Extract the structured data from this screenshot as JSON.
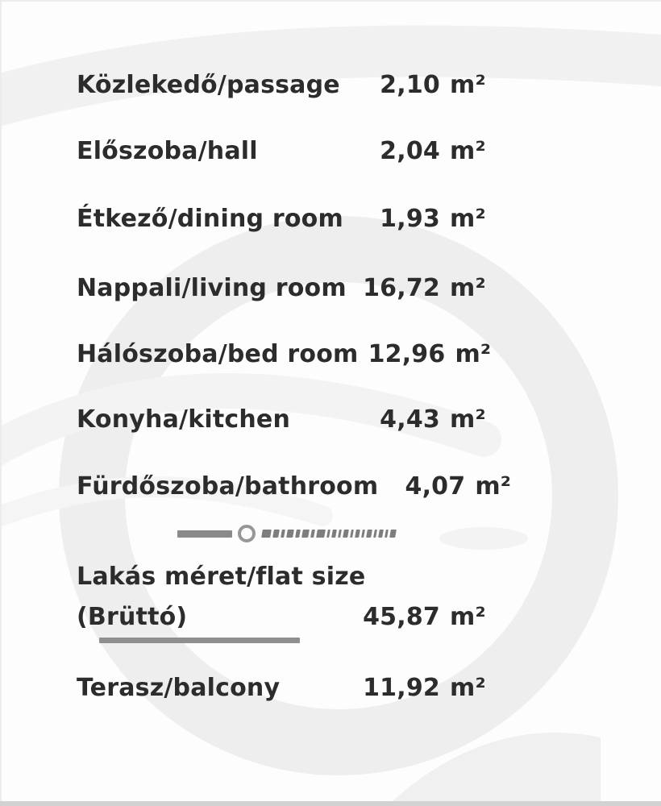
{
  "rooms": [
    {
      "name": "Közlekedő/passage",
      "value": "2,10",
      "unit": "m²"
    },
    {
      "name": "Előszoba/hall",
      "value": "2,04",
      "unit": "m²"
    },
    {
      "name": "Étkező/dining room",
      "value": "1,93",
      "unit": "m²"
    },
    {
      "name": "Nappali/living room",
      "value": "16,72",
      "unit": "m²"
    },
    {
      "name": "Hálószoba/bed room",
      "value": "12,96",
      "unit": "m²"
    },
    {
      "name": "Konyha/kitchen",
      "value": "4,43",
      "unit": "m²"
    },
    {
      "name": "Fürdőszoba/bathroom",
      "value": "4,07",
      "unit": "m²"
    }
  ],
  "totals": {
    "flat_size": {
      "label_line1": "Lakás méret/flat size",
      "label_line2": "(Brüttó)",
      "value": "45,87",
      "unit": "m²"
    },
    "balcony": {
      "name": "Terasz/balcony",
      "value": "11,92",
      "unit": "m²"
    }
  },
  "divider": {
    "marks": [
      11,
      7,
      4,
      8,
      5,
      8,
      4,
      10,
      3,
      5,
      3,
      6,
      3,
      5,
      3,
      6,
      3,
      5,
      3,
      7
    ]
  },
  "colors": {
    "text": "#2c2c2c",
    "rule": "#8a8a8a",
    "swoosh": "#eeeeee",
    "background": "#fdfdfd"
  }
}
